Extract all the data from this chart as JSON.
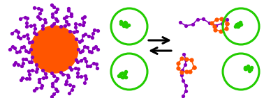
{
  "bg_color": "#ffffff",
  "micelle_core_color": "#ff5500",
  "corona_color": "#8800bb",
  "green_polymer_color": "#22cc00",
  "orange_cluster_color": "#ff5500",
  "purple_chain_color": "#8800bb",
  "circle_color": "#22cc00",
  "circle_lw": 2.0,
  "fig_width": 3.78,
  "fig_height": 1.41,
  "dpi": 100
}
